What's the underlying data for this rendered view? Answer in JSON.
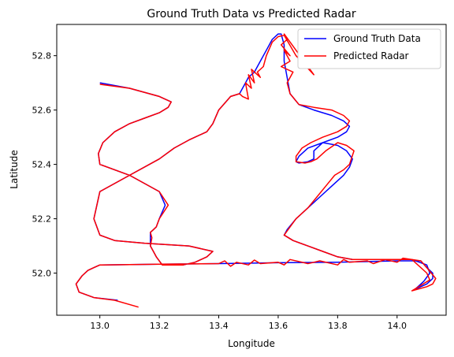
{
  "chart_data": {
    "type": "line",
    "title": "Ground Truth Data vs Predicted Radar",
    "xlabel": "Longitude",
    "ylabel": "Latitude",
    "xlim": [
      12.855,
      14.165
    ],
    "ylim": [
      51.845,
      52.915
    ],
    "xticks": [
      13.0,
      13.2,
      13.4,
      13.6,
      13.8,
      14.0
    ],
    "xtick_labels": [
      "13.0",
      "13.2",
      "13.4",
      "13.6",
      "13.8",
      "14.0"
    ],
    "yticks": [
      52.0,
      52.2,
      52.4,
      52.6,
      52.8
    ],
    "ytick_labels": [
      "52.0",
      "52.2",
      "52.4",
      "52.6",
      "52.8"
    ],
    "grid": false,
    "legend_position": "top-right",
    "series": [
      {
        "name": "Ground Truth Data",
        "color": "#0000ff",
        "x": [
          13.06,
          12.98,
          12.93,
          12.92,
          12.94,
          12.96,
          12.98,
          13.0,
          13.2,
          13.4,
          13.6,
          13.8,
          14.0,
          14.08,
          14.1,
          14.12,
          14.12,
          14.1,
          14.06,
          14.07,
          14.09,
          14.11,
          14.1,
          14.05,
          13.9,
          13.85,
          13.8,
          13.75,
          13.7,
          13.65,
          13.62,
          13.63,
          13.66,
          13.7,
          13.74,
          13.78,
          13.82,
          13.84,
          13.85,
          13.83,
          13.8,
          13.75,
          13.72,
          13.72,
          13.7,
          13.67,
          13.66,
          13.67,
          13.7,
          13.75,
          13.8,
          13.83,
          13.84,
          13.82,
          13.78,
          13.72,
          13.67,
          13.64,
          13.63,
          13.62,
          13.62,
          13.61,
          13.6,
          13.58,
          13.56,
          13.54,
          13.52,
          13.5,
          13.49,
          13.48,
          13.47,
          13.44,
          13.4,
          13.38,
          13.36,
          13.3,
          13.25,
          13.2,
          13.1,
          13.0,
          12.98,
          13.0,
          13.05,
          13.15,
          13.3,
          13.38,
          13.36,
          13.32,
          13.28,
          13.24,
          13.21,
          13.19,
          13.18,
          13.17,
          13.17,
          13.17,
          13.18,
          13.19,
          13.2,
          13.22,
          13.2,
          13.1,
          13.0,
          12.995,
          13.01,
          13.05,
          13.1,
          13.15,
          13.2,
          13.23,
          13.24,
          13.2,
          13.1,
          13.0
        ],
        "y": [
          51.9,
          51.91,
          51.93,
          51.96,
          51.99,
          52.01,
          52.02,
          52.03,
          52.033,
          52.035,
          52.038,
          52.04,
          52.045,
          52.045,
          52.02,
          52.0,
          51.98,
          51.96,
          51.94,
          51.95,
          51.97,
          52.0,
          52.03,
          52.05,
          52.05,
          52.05,
          52.06,
          52.08,
          52.1,
          52.12,
          52.14,
          52.16,
          52.2,
          52.24,
          52.28,
          52.32,
          52.36,
          52.39,
          52.42,
          52.45,
          52.47,
          52.48,
          52.45,
          52.42,
          52.41,
          52.405,
          52.41,
          52.43,
          52.46,
          52.48,
          52.5,
          52.52,
          52.54,
          52.56,
          52.58,
          52.6,
          52.62,
          52.66,
          52.72,
          52.78,
          52.84,
          52.88,
          52.88,
          52.86,
          52.82,
          52.78,
          52.74,
          52.72,
          52.7,
          52.68,
          52.66,
          52.65,
          52.6,
          52.55,
          52.52,
          52.49,
          52.46,
          52.42,
          52.36,
          52.3,
          52.2,
          52.14,
          52.12,
          52.11,
          52.1,
          52.08,
          52.06,
          52.04,
          52.03,
          52.03,
          52.03,
          52.06,
          52.08,
          52.1,
          52.13,
          52.15,
          52.16,
          52.17,
          52.2,
          52.25,
          52.3,
          52.36,
          52.4,
          52.44,
          52.48,
          52.52,
          52.55,
          52.57,
          52.59,
          52.61,
          52.63,
          52.65,
          52.68,
          52.7
        ]
      },
      {
        "name": "Predicted Radar",
        "color": "#ff0000",
        "x": [
          13.13,
          13.05,
          12.98,
          12.93,
          12.92,
          12.94,
          12.96,
          12.98,
          13.0,
          13.2,
          13.4,
          13.42,
          13.44,
          13.46,
          13.5,
          13.52,
          13.54,
          13.6,
          13.62,
          13.64,
          13.7,
          13.72,
          13.74,
          13.8,
          13.82,
          13.84,
          13.9,
          13.92,
          13.96,
          14.0,
          14.02,
          14.08,
          14.1,
          14.13,
          14.12,
          14.1,
          14.05,
          14.08,
          14.11,
          14.1,
          14.05,
          13.9,
          13.85,
          13.8,
          13.75,
          13.7,
          13.65,
          13.62,
          13.64,
          13.66,
          13.7,
          13.73,
          13.76,
          13.79,
          13.82,
          13.84,
          13.855,
          13.83,
          13.8,
          13.76,
          13.73,
          13.71,
          13.69,
          13.66,
          13.66,
          13.68,
          13.71,
          13.75,
          13.8,
          13.83,
          13.84,
          13.82,
          13.78,
          13.72,
          13.67,
          13.64,
          13.63,
          13.65,
          13.61,
          13.64,
          13.62,
          13.64,
          13.61,
          13.63,
          13.62,
          13.66,
          13.72,
          13.66,
          13.62,
          13.6,
          13.58,
          13.56,
          13.55,
          13.53,
          13.54,
          13.51,
          13.52,
          13.5,
          13.51,
          13.49,
          13.5,
          13.48,
          13.47,
          13.44,
          13.4,
          13.38,
          13.36,
          13.3,
          13.25,
          13.2,
          13.1,
          13.0,
          12.98,
          13.0,
          13.05,
          13.15,
          13.3,
          13.38,
          13.36,
          13.32,
          13.28,
          13.24,
          13.21,
          13.19,
          13.18,
          13.17,
          13.175,
          13.17,
          13.18,
          13.19,
          13.2,
          13.23,
          13.2,
          13.1,
          13.0,
          12.995,
          13.01,
          13.05,
          13.1,
          13.15,
          13.2,
          13.23,
          13.24,
          13.2,
          13.1,
          13.0
        ],
        "y": [
          51.875,
          51.9,
          51.91,
          51.93,
          51.96,
          51.99,
          52.01,
          52.02,
          52.03,
          52.033,
          52.035,
          52.045,
          52.025,
          52.04,
          52.03,
          52.048,
          52.035,
          52.04,
          52.03,
          52.05,
          52.035,
          52.04,
          52.045,
          52.03,
          52.05,
          52.04,
          52.045,
          52.035,
          52.05,
          52.04,
          52.055,
          52.045,
          52.02,
          51.98,
          51.96,
          51.95,
          51.935,
          51.955,
          51.975,
          52.0,
          52.05,
          52.05,
          52.05,
          52.06,
          52.08,
          52.1,
          52.12,
          52.14,
          52.17,
          52.2,
          52.24,
          52.28,
          52.32,
          52.36,
          52.38,
          52.4,
          52.45,
          52.47,
          52.48,
          52.45,
          52.42,
          52.41,
          52.405,
          52.41,
          52.43,
          52.46,
          52.48,
          52.5,
          52.52,
          52.54,
          52.56,
          52.58,
          52.6,
          52.61,
          52.62,
          52.66,
          52.7,
          52.74,
          52.76,
          52.78,
          52.82,
          52.8,
          52.84,
          52.86,
          52.88,
          52.82,
          52.73,
          52.8,
          52.875,
          52.87,
          52.85,
          52.8,
          52.76,
          52.74,
          52.72,
          52.75,
          52.7,
          52.73,
          52.68,
          52.7,
          52.64,
          52.65,
          52.66,
          52.65,
          52.6,
          52.55,
          52.52,
          52.49,
          52.46,
          52.42,
          52.36,
          52.3,
          52.2,
          52.14,
          52.12,
          52.11,
          52.1,
          52.08,
          52.06,
          52.04,
          52.03,
          52.03,
          52.03,
          52.06,
          52.08,
          52.1,
          52.13,
          52.15,
          52.16,
          52.17,
          52.2,
          52.25,
          52.3,
          52.36,
          52.4,
          52.44,
          52.48,
          52.52,
          52.55,
          52.57,
          52.59,
          52.61,
          52.63,
          52.65,
          52.68,
          52.695
        ]
      }
    ]
  }
}
